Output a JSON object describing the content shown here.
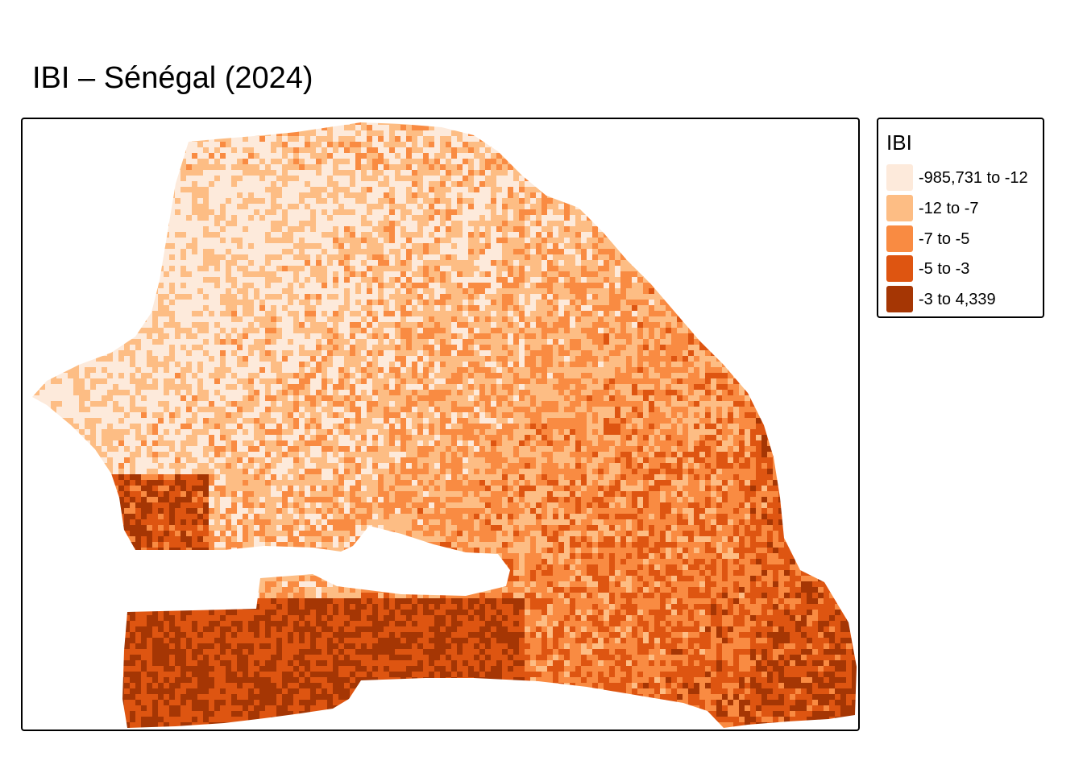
{
  "title": "IBI – Sénégal (2024)",
  "legend": {
    "title": "IBI",
    "classes": [
      {
        "label": "-985,731 to -12",
        "color": "#fdeadb"
      },
      {
        "label": "-12 to -7",
        "color": "#fdbd84"
      },
      {
        "label": "-7 to -5",
        "color": "#f98b42"
      },
      {
        "label": "-5 to -3",
        "color": "#de5511"
      },
      {
        "label": "-3 to 4,339",
        "color": "#a53604"
      }
    ]
  },
  "colors": {
    "background": "#ffffff",
    "frame": "#000000"
  }
}
